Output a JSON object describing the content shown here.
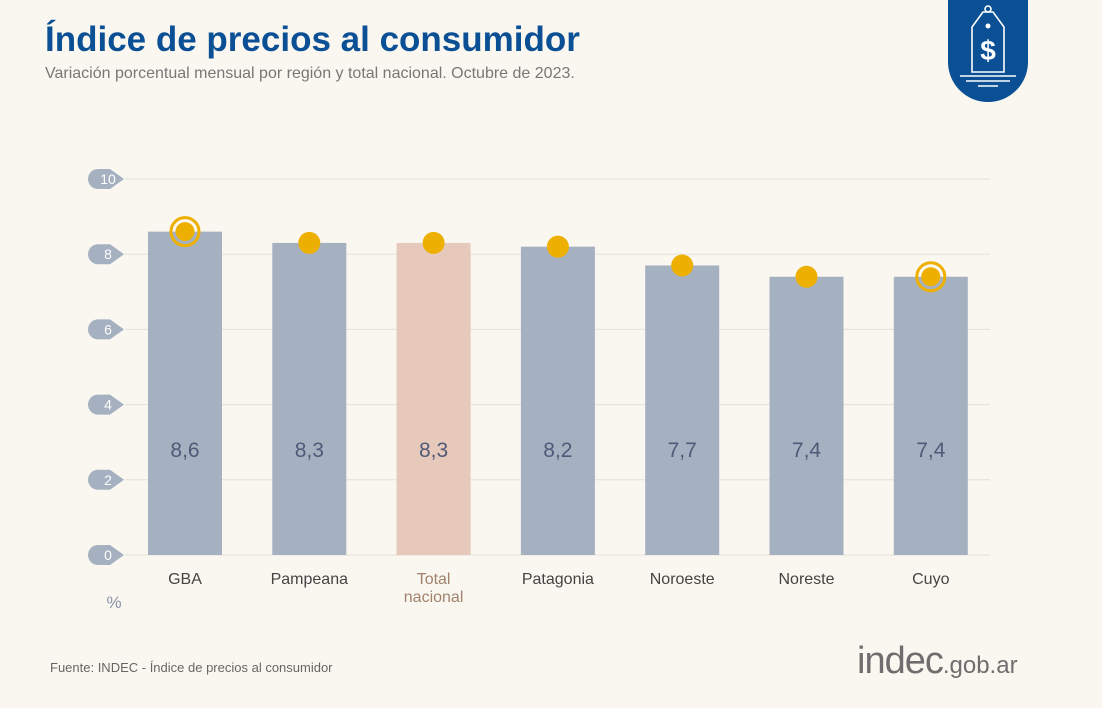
{
  "header": {
    "title": "Índice de precios al consumidor",
    "subtitle": "Variación porcentual mensual por región y total nacional. Octubre de 2023.",
    "badge_icon": "price-tag-dollar-icon"
  },
  "footer": {
    "source": "Fuente: INDEC - Índice de precios al consumidor",
    "logo_main": "indec",
    "logo_domain": ".gob.ar"
  },
  "chart_data": {
    "type": "bar",
    "title": "Índice de precios al consumidor",
    "subtitle": "Variación porcentual mensual por región y total nacional. Octubre de 2023.",
    "ylabel": "%",
    "ylim": [
      0,
      10
    ],
    "yticks": [
      0,
      2,
      4,
      6,
      8,
      10
    ],
    "grid": true,
    "categories": [
      "GBA",
      "Pampeana",
      "Total nacional",
      "Patagonia",
      "Noroeste",
      "Noreste",
      "Cuyo"
    ],
    "values": [
      8.6,
      8.3,
      8.3,
      8.2,
      7.7,
      7.4,
      7.4
    ],
    "value_labels": [
      "8,6",
      "8,3",
      "8,3",
      "8,2",
      "7,7",
      "7,4",
      "7,4"
    ],
    "highlighted": [
      "GBA",
      "Cuyo"
    ],
    "colors": {
      "bar": "#a5b0c0",
      "bar_total": "#e6c9bb",
      "dot": "#eeb000",
      "total_label": "#a0826d",
      "grid": "#e2e0d8",
      "tick_badge": "#a5b0c0"
    }
  }
}
